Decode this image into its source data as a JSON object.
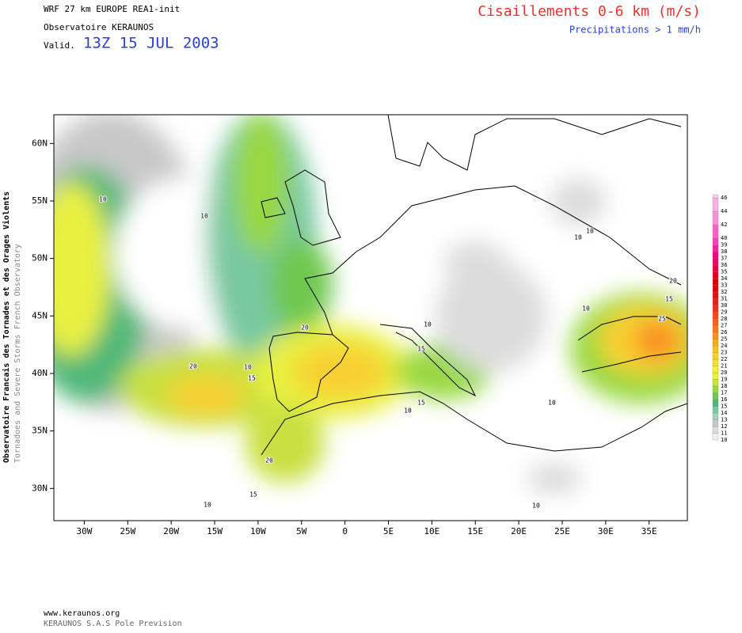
{
  "header": {
    "model": "WRF 27 km EUROPE   REA1-init",
    "org": "Observatoire KERAUNOS",
    "valid_prefix": "Valid.",
    "valid_time": "13Z 15 JUL 2003",
    "field": "Cisaillements 0-6 km (m/s)",
    "overlay": "Precipitations > 1 mm/h"
  },
  "side": {
    "line1": "Observatoire Francais des Tornades et des Orages Violents",
    "line2": "Tornadoes and Severe Storms French Observatory"
  },
  "map": {
    "xlim": [
      -33.5,
      39.4
    ],
    "ylim": [
      27.2,
      62.5
    ],
    "xticks": [
      {
        "value": -30,
        "label": "30W"
      },
      {
        "value": -25,
        "label": "25W"
      },
      {
        "value": -20,
        "label": "20W"
      },
      {
        "value": -15,
        "label": "15W"
      },
      {
        "value": -10,
        "label": "10W"
      },
      {
        "value": -5,
        "label": "5W"
      },
      {
        "value": 0,
        "label": "0"
      },
      {
        "value": 5,
        "label": "5E"
      },
      {
        "value": 10,
        "label": "10E"
      },
      {
        "value": 15,
        "label": "15E"
      },
      {
        "value": 20,
        "label": "20E"
      },
      {
        "value": 25,
        "label": "25E"
      },
      {
        "value": 30,
        "label": "30E"
      },
      {
        "value": 35,
        "label": "35E"
      }
    ],
    "yticks": [
      {
        "value": 30,
        "label": "30N"
      },
      {
        "value": 35,
        "label": "35N"
      },
      {
        "value": 40,
        "label": "40N"
      },
      {
        "value": 45,
        "label": "45N"
      },
      {
        "value": 50,
        "label": "50N"
      },
      {
        "value": 55,
        "label": "55N"
      },
      {
        "value": 60,
        "label": "60N"
      }
    ],
    "contour_labels": [
      "10",
      "10",
      "10",
      "20",
      "10",
      "15",
      "20",
      "10",
      "15",
      "10",
      "15",
      "10",
      "10",
      "15",
      "20",
      "25",
      "10",
      "10",
      "10",
      "20",
      "15"
    ]
  },
  "colorbar": {
    "lim": [
      10,
      46
    ],
    "ticks": [
      10,
      11,
      12,
      13,
      14,
      15,
      16,
      17,
      18,
      19,
      20,
      21,
      22,
      23,
      24,
      25,
      26,
      27,
      28,
      29,
      30,
      31,
      32,
      33,
      34,
      35,
      36,
      37,
      38,
      39,
      40,
      42,
      44,
      46
    ],
    "colors": [
      "#f0f0f0",
      "#dcdcdc",
      "#c8c8c8",
      "#a8d0b8",
      "#78c8a0",
      "#50b878",
      "#70c850",
      "#98d840",
      "#c8e040",
      "#e8f040",
      "#f8f040",
      "#f8e030",
      "#f8d030",
      "#f8c020",
      "#f8a820",
      "#f89020",
      "#f87820",
      "#f86020",
      "#f84818",
      "#f03010",
      "#e82010",
      "#e01008",
      "#e00000",
      "#d80000",
      "#e00020",
      "#e80040",
      "#f00060",
      "#f80080",
      "#f820a0",
      "#f840b8",
      "#f860c8",
      "#f890d8",
      "#f8b0e4",
      "#f8d0f0"
    ]
  },
  "footer": {
    "url": "www.keraunos.org",
    "company": "KERAUNOS S.A.S Pole Prevision"
  }
}
